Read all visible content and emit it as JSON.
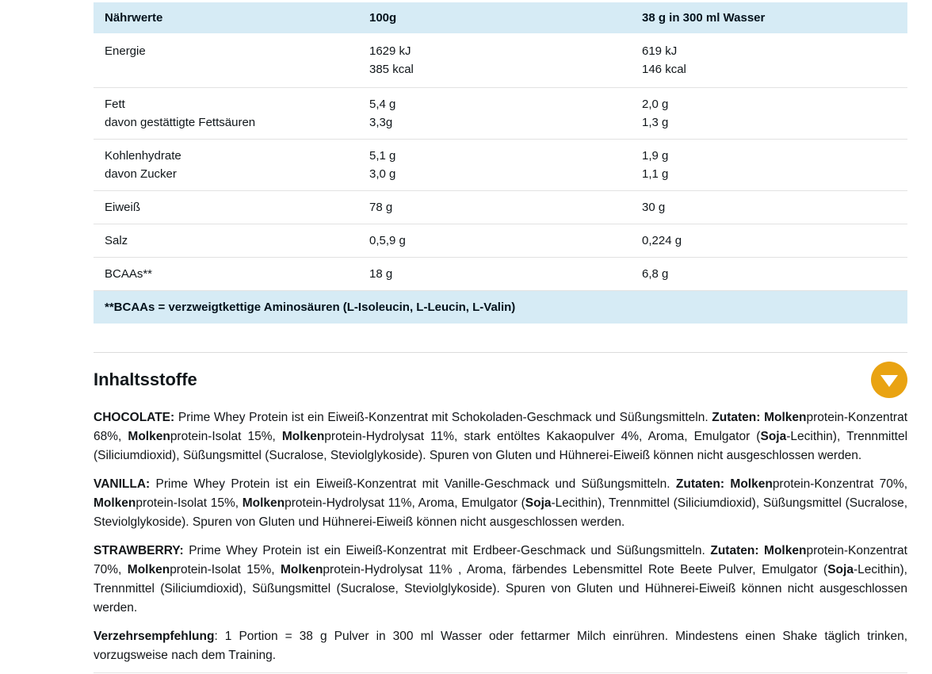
{
  "colors": {
    "accent_orange": "#e9a312",
    "table_band_blue": "#d6ebf5",
    "text_dark": "#10161a",
    "divider_gray": "#e2e2e2"
  },
  "nutrition_table": {
    "columns": {
      "col1": "Nährwerte",
      "col2": "100g",
      "col3": "38 g in 300 ml Wasser"
    },
    "rows": [
      {
        "lines": [
          {
            "label": "Energie",
            "per100": "1629 kJ",
            "serving": "619 kJ"
          },
          {
            "label": "",
            "per100": "385 kcal",
            "serving": "146 kcal"
          }
        ]
      },
      {
        "lines": [
          {
            "label": "Fett",
            "per100": "5,4 g",
            "serving": "2,0 g"
          },
          {
            "label": "davon gestättigte Fettsäuren",
            "per100": "3,3g",
            "serving": "1,3 g"
          }
        ]
      },
      {
        "lines": [
          {
            "label": "Kohlenhydrate",
            "per100": "5,1 g",
            "serving": "1,9 g"
          },
          {
            "label": "davon Zucker",
            "per100": "3,0 g",
            "serving": "1,1 g"
          }
        ]
      },
      {
        "lines": [
          {
            "label": "Eiweiß",
            "per100": "78 g",
            "serving": "30 g"
          }
        ]
      },
      {
        "lines": [
          {
            "label": "Salz",
            "per100": "0,5,9 g",
            "serving": "0,224 g"
          }
        ]
      },
      {
        "lines": [
          {
            "label": "BCAAs**",
            "per100": "18 g",
            "serving": "6,8 g"
          }
        ]
      }
    ],
    "footnote": "**BCAAs = verzweigtkettige Aminosäuren (L-Isoleucin, L-Leucin, L-Valin)"
  },
  "ingredients": {
    "title": "Inhaltsstoffe",
    "collapse_icon": "chevron-down",
    "paragraphs": [
      {
        "name": "chocolate",
        "segments": [
          {
            "t": "CHOCOLATE:",
            "b": true
          },
          {
            "t": " Prime Whey Protein ist ein Eiweiß-Konzentrat mit Schokoladen-Geschmack und Süßungsmitteln. ",
            "b": false
          },
          {
            "t": "Zutaten:",
            "b": true
          },
          {
            "t": " ",
            "b": false
          },
          {
            "t": "Molken",
            "b": true
          },
          {
            "t": "protein-Konzentrat 68%, ",
            "b": false
          },
          {
            "t": "Molken",
            "b": true
          },
          {
            "t": "protein-Isolat 15%, ",
            "b": false
          },
          {
            "t": "Molken",
            "b": true
          },
          {
            "t": "protein-Hydrolysat 11%, stark entöltes Kakaopulver 4%, Aroma, Emulgator (",
            "b": false
          },
          {
            "t": "Soja",
            "b": true
          },
          {
            "t": "-Lecithin), Trennmittel (Siliciumdioxid), Süßungsmittel (Sucralose, Steviolglykoside). Spuren von Gluten und Hühnerei-Eiweiß können nicht ausgeschlossen werden.",
            "b": false
          }
        ]
      },
      {
        "name": "vanilla",
        "segments": [
          {
            "t": "VANILLA:",
            "b": true
          },
          {
            "t": " Prime Whey Protein ist ein Eiweiß-Konzentrat mit Vanille-Geschmack und Süßungsmitteln. ",
            "b": false
          },
          {
            "t": "Zutaten:",
            "b": true
          },
          {
            "t": " ",
            "b": false
          },
          {
            "t": "Molken",
            "b": true
          },
          {
            "t": "protein-Konzentrat 70%, ",
            "b": false
          },
          {
            "t": "Molken",
            "b": true
          },
          {
            "t": "protein-Isolat 15%, ",
            "b": false
          },
          {
            "t": "Molken",
            "b": true
          },
          {
            "t": "protein-Hydrolysat 11%,  Aroma, Emulgator (",
            "b": false
          },
          {
            "t": "Soja",
            "b": true
          },
          {
            "t": "-Lecithin), Trennmittel (Siliciumdioxid), Süßungsmittel (Sucralose, Steviolglykoside). Spuren von Gluten und Hühnerei-Eiweiß können nicht ausgeschlossen werden.",
            "b": false
          }
        ]
      },
      {
        "name": "strawberry",
        "segments": [
          {
            "t": "STRAWBERRY:",
            "b": true
          },
          {
            "t": " Prime Whey Protein ist ein Eiweiß-Konzentrat mit Erdbeer-Geschmack und Süßungsmitteln. ",
            "b": false
          },
          {
            "t": "Zutaten:",
            "b": true
          },
          {
            "t": " ",
            "b": false
          },
          {
            "t": "Molken",
            "b": true
          },
          {
            "t": "protein-Konzentrat 70%, ",
            "b": false
          },
          {
            "t": "Molken",
            "b": true
          },
          {
            "t": "protein-Isolat 15%, ",
            "b": false
          },
          {
            "t": "Molken",
            "b": true
          },
          {
            "t": "protein-Hydrolysat 11% , Aroma, färbendes Lebensmittel Rote Beete Pulver, Emulgator (",
            "b": false
          },
          {
            "t": "Soja",
            "b": true
          },
          {
            "t": "-Lecithin), Trennmittel (Siliciumdioxid), Süßungsmittel (Sucralose, Steviolglykoside). Spuren von Gluten und Hühnerei-Eiweiß können nicht ausgeschlossen werden.",
            "b": false
          }
        ]
      },
      {
        "name": "verzehrsempfehlung",
        "segments": [
          {
            "t": "Verzehrsempfehlung",
            "b": true
          },
          {
            "t": ": 1 Portion = 38 g Pulver in 300 ml Wasser oder fettarmer Milch einrühren. Mindestens einen Shake täglich trinken, vorzugsweise nach dem Training.",
            "b": false
          }
        ]
      }
    ]
  }
}
